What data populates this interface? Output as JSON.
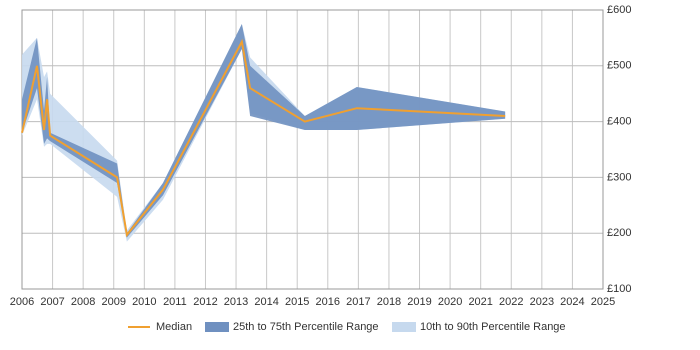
{
  "chart_data": {
    "type": "band-line",
    "x": [
      2006.0,
      2006.49,
      2006.72,
      2006.82,
      2006.92,
      2009.11,
      2009.43,
      2010.61,
      2013.19,
      2013.46,
      2015.25,
      2016.95,
      2021.8
    ],
    "series": [
      {
        "name": "10th to 90th Percentile Range",
        "kind": "band",
        "color": "#c6d9ee",
        "low": [
          375,
          440,
          355,
          360,
          360,
          265,
          185,
          260,
          530,
          415,
          385,
          385,
          405
        ],
        "high": [
          520,
          550,
          480,
          490,
          450,
          330,
          205,
          290,
          575,
          515,
          410,
          462,
          418
        ]
      },
      {
        "name": "25th to 75th Percentile Range",
        "kind": "band",
        "color": "#6f90c0",
        "low": [
          380,
          460,
          360,
          370,
          365,
          290,
          192,
          268,
          530,
          410,
          385,
          385,
          405
        ],
        "high": [
          440,
          550,
          420,
          480,
          380,
          325,
          200,
          290,
          575,
          500,
          410,
          462,
          418
        ]
      },
      {
        "name": "Median",
        "kind": "line",
        "color": "#f0a030",
        "values": [
          380,
          500,
          385,
          440,
          375,
          300,
          197,
          278,
          543,
          460,
          400,
          424,
          410
        ]
      }
    ],
    "legend_order": [
      2,
      1,
      0
    ],
    "xlim": [
      2006,
      2025
    ],
    "xticks": [
      2006,
      2007,
      2008,
      2009,
      2010,
      2011,
      2012,
      2013,
      2014,
      2015,
      2016,
      2017,
      2018,
      2019,
      2020,
      2021,
      2022,
      2023,
      2024,
      2025
    ],
    "ylim": [
      100,
      600
    ],
    "yticks": [
      {
        "value": 100,
        "label": "£100"
      },
      {
        "value": 200,
        "label": "£200"
      },
      {
        "value": 300,
        "label": "£300"
      },
      {
        "value": 400,
        "label": "£400"
      },
      {
        "value": 500,
        "label": "£500"
      },
      {
        "value": 600,
        "label": "£600"
      }
    ],
    "grid": true
  }
}
